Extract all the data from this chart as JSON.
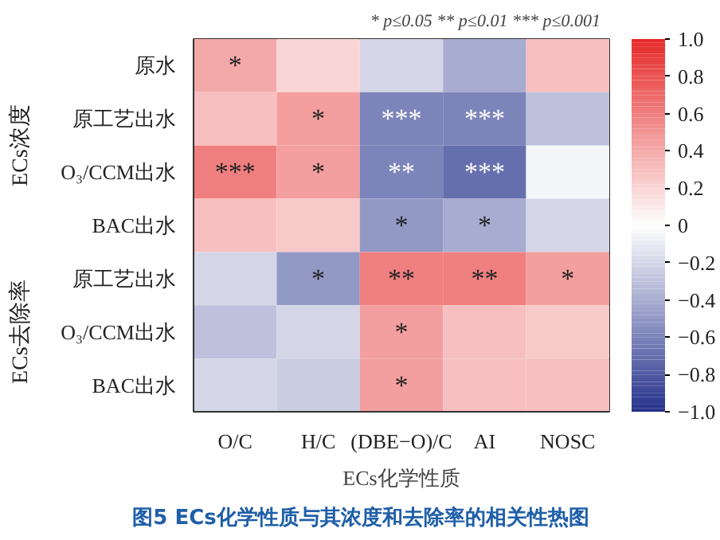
{
  "chart_data": {
    "type": "heatmap",
    "title": "图5 ECs化学性质与其浓度和去除率的相关性热图",
    "subtitle": "* p≤0.05  ** p≤0.01  *** p≤0.001",
    "xlabel": "ECs化学性质",
    "categories": [
      "O/C",
      "H/C",
      "(DBE−O)/C",
      "AI",
      "NOSC"
    ],
    "y_categories": [
      "原水",
      "原工艺出水",
      "O₃/CCM出水",
      "BAC出水",
      "原工艺出水",
      "O₃/CCM出水",
      "BAC出水"
    ],
    "cells": [
      [
        0.4,
        0.2,
        -0.2,
        -0.4,
        0.3
      ],
      [
        0.3,
        0.45,
        -0.6,
        -0.6,
        -0.3
      ],
      [
        0.6,
        0.45,
        -0.6,
        -0.7,
        -0.05
      ],
      [
        0.3,
        0.25,
        -0.5,
        -0.4,
        -0.2
      ],
      [
        -0.2,
        -0.5,
        0.6,
        0.6,
        0.45
      ],
      [
        -0.3,
        -0.2,
        0.45,
        0.3,
        0.25
      ],
      [
        -0.2,
        -0.25,
        0.45,
        0.3,
        0.3
      ]
    ],
    "cell_labels": [
      [
        "*",
        null,
        null,
        null,
        null
      ],
      [
        null,
        "*",
        "***",
        "***",
        null
      ],
      [
        "***",
        "*",
        "**",
        "***",
        null
      ],
      [
        null,
        null,
        "*",
        "*",
        null
      ],
      [
        null,
        "*",
        "**",
        "**",
        "*"
      ],
      [
        null,
        null,
        "*",
        null,
        null
      ],
      [
        null,
        null,
        "*",
        null,
        null
      ]
    ],
    "clim": [
      -1,
      1
    ],
    "cticks": [
      {
        "value": 1,
        "label": "1.0"
      },
      0.8,
      0.6,
      0.4,
      0.2,
      0,
      {
        "value": -0.2,
        "label": "−0.2"
      },
      {
        "value": -0.4,
        "label": "−0.4"
      },
      {
        "value": -0.6,
        "label": "−0.6"
      },
      {
        "value": -0.8,
        "label": "−0.8"
      },
      {
        "value": -1,
        "label": "−1.0"
      }
    ],
    "annotations": [
      "ECs浓度",
      "ECs去除率"
    ]
  }
}
